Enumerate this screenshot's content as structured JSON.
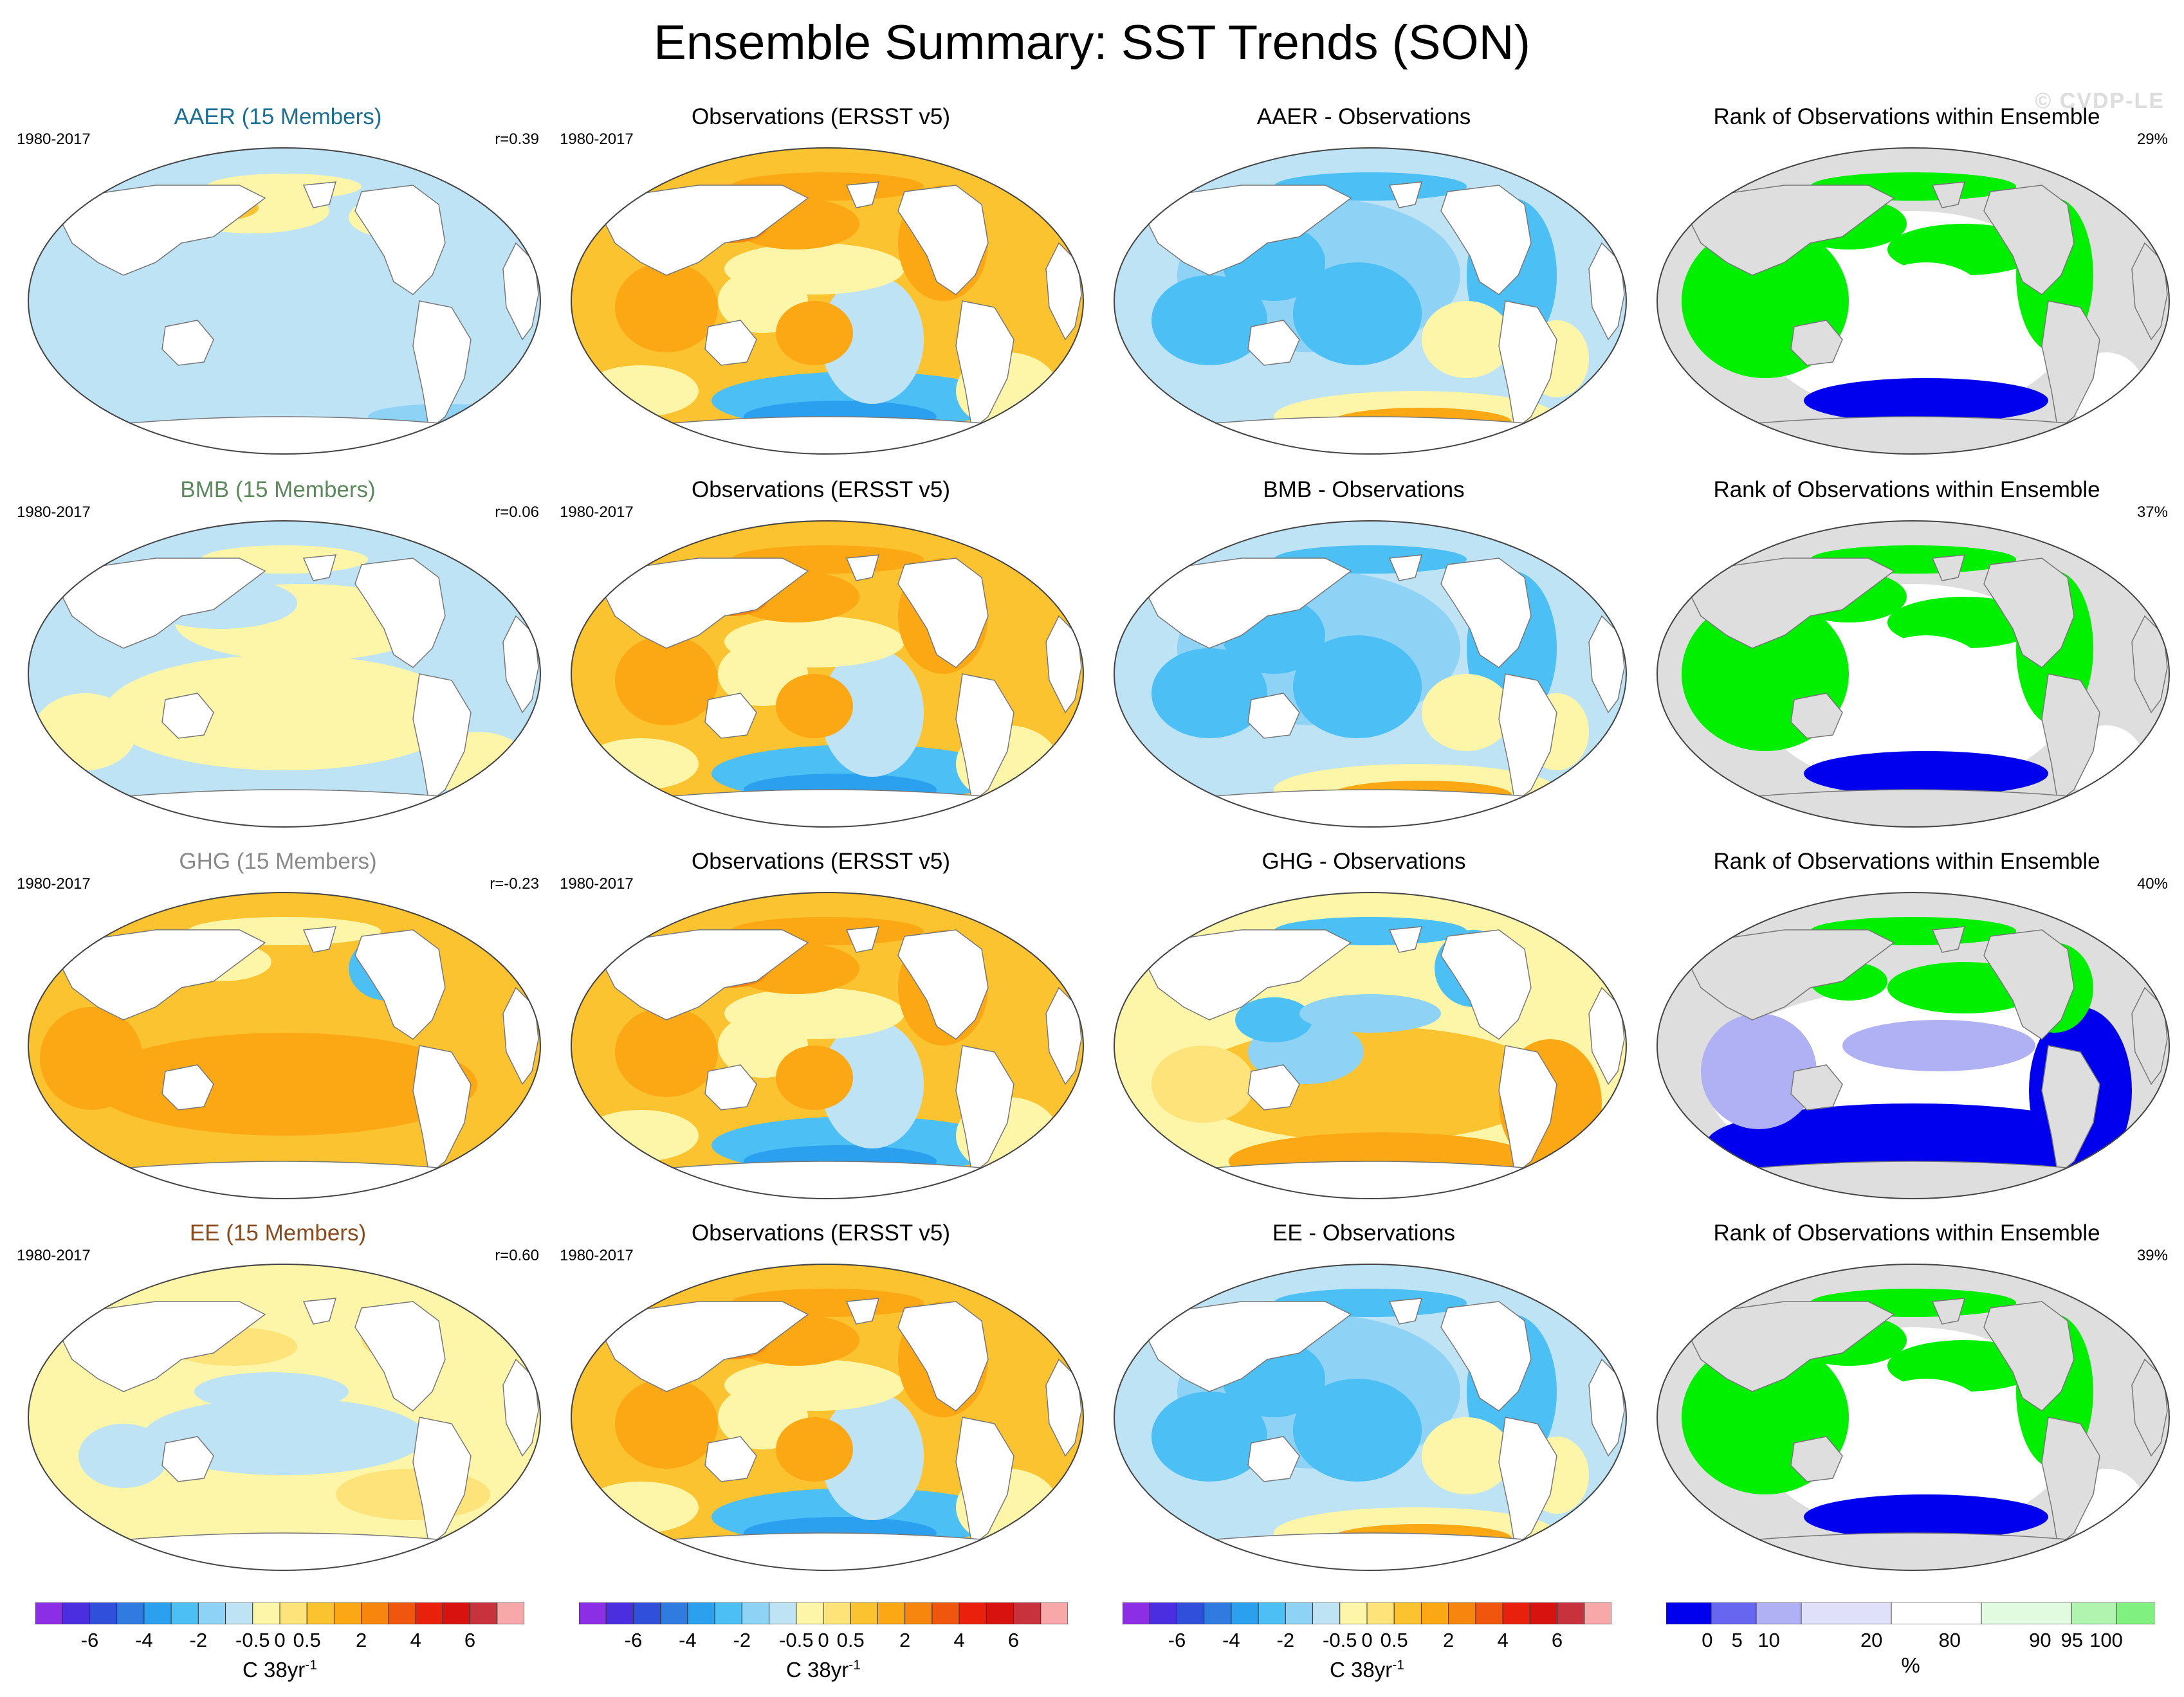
{
  "title": "Ensemble Summary: SST Trends (SON)",
  "watermark": "© CVDP-LE",
  "rows": [
    {
      "model": {
        "title": "AAER (15 Members)",
        "title_color": "#1a6f96",
        "period": "1980-2017",
        "r": "r=0.39",
        "pattern": "aaer"
      },
      "obs": {
        "title": "Observations (ERSST v5)",
        "period": "1980-2017",
        "pattern": "obs"
      },
      "diff": {
        "title": "AAER - Observations",
        "pattern": "diff_cold"
      },
      "rank": {
        "title": "Rank of Observations within Ensemble",
        "pct": "29%",
        "pattern": "rank_a"
      }
    },
    {
      "model": {
        "title": "BMB (15 Members)",
        "title_color": "#5c8a5c",
        "period": "1980-2017",
        "r": "r=0.06",
        "pattern": "bmb"
      },
      "obs": {
        "title": "Observations (ERSST v5)",
        "period": "1980-2017",
        "pattern": "obs"
      },
      "diff": {
        "title": "BMB - Observations",
        "pattern": "diff_cold"
      },
      "rank": {
        "title": "Rank of Observations within Ensemble",
        "pct": "37%",
        "pattern": "rank_a"
      }
    },
    {
      "model": {
        "title": "GHG (15 Members)",
        "title_color": "#8a8a8a",
        "period": "1980-2017",
        "r": "r=-0.23",
        "pattern": "ghg"
      },
      "obs": {
        "title": "Observations (ERSST v5)",
        "period": "1980-2017",
        "pattern": "obs"
      },
      "diff": {
        "title": "GHG - Observations",
        "pattern": "diff_warm"
      },
      "rank": {
        "title": "Rank of Observations within Ensemble",
        "pct": "40%",
        "pattern": "rank_b"
      }
    },
    {
      "model": {
        "title": "EE (15 Members)",
        "title_color": "#8b4a1c",
        "period": "1980-2017",
        "r": "r=0.60",
        "pattern": "ee"
      },
      "obs": {
        "title": "Observations (ERSST v5)",
        "period": "1980-2017",
        "pattern": "obs"
      },
      "diff": {
        "title": "EE - Observations",
        "pattern": "diff_cold"
      },
      "rank": {
        "title": "Rank of Observations within Ensemble",
        "pct": "39%",
        "pattern": "rank_a"
      }
    }
  ],
  "colorbars": {
    "trend": {
      "colors": [
        "#8c2ee6",
        "#4b2ee0",
        "#3050dc",
        "#2f7be0",
        "#2aa0ee",
        "#4cc0f5",
        "#8ed2f5",
        "#bde3f5",
        "#fdf6a8",
        "#fde37a",
        "#fcc330",
        "#fba814",
        "#f7860f",
        "#f0560e",
        "#e8200c",
        "#d8120e",
        "#c8323c",
        "#f8a8a8"
      ],
      "ticks": [
        "-6",
        "-4",
        "-2",
        "-0.5",
        "0",
        "0.5",
        "2",
        "4",
        "6"
      ],
      "tick_after_box": [
        1,
        3,
        5,
        7,
        8,
        9,
        11,
        13,
        15
      ],
      "unit": "C 38yr",
      "unit_sup": "-1"
    },
    "rank": {
      "colors": [
        "#0000ee",
        "#6666f0",
        "#b0b0f4",
        "#e0e0fb",
        "#ffffff",
        "#e0fbe0",
        "#b0f4b0",
        "#80f080",
        "#00f000"
      ],
      "ticks": [
        "0",
        "5",
        "10",
        "20",
        "80",
        "90",
        "95",
        "100"
      ],
      "tick_pos_frac": [
        0.084,
        0.145,
        0.21,
        0.42,
        0.58,
        0.765,
        0.83,
        0.9
      ],
      "unit": "%"
    }
  }
}
